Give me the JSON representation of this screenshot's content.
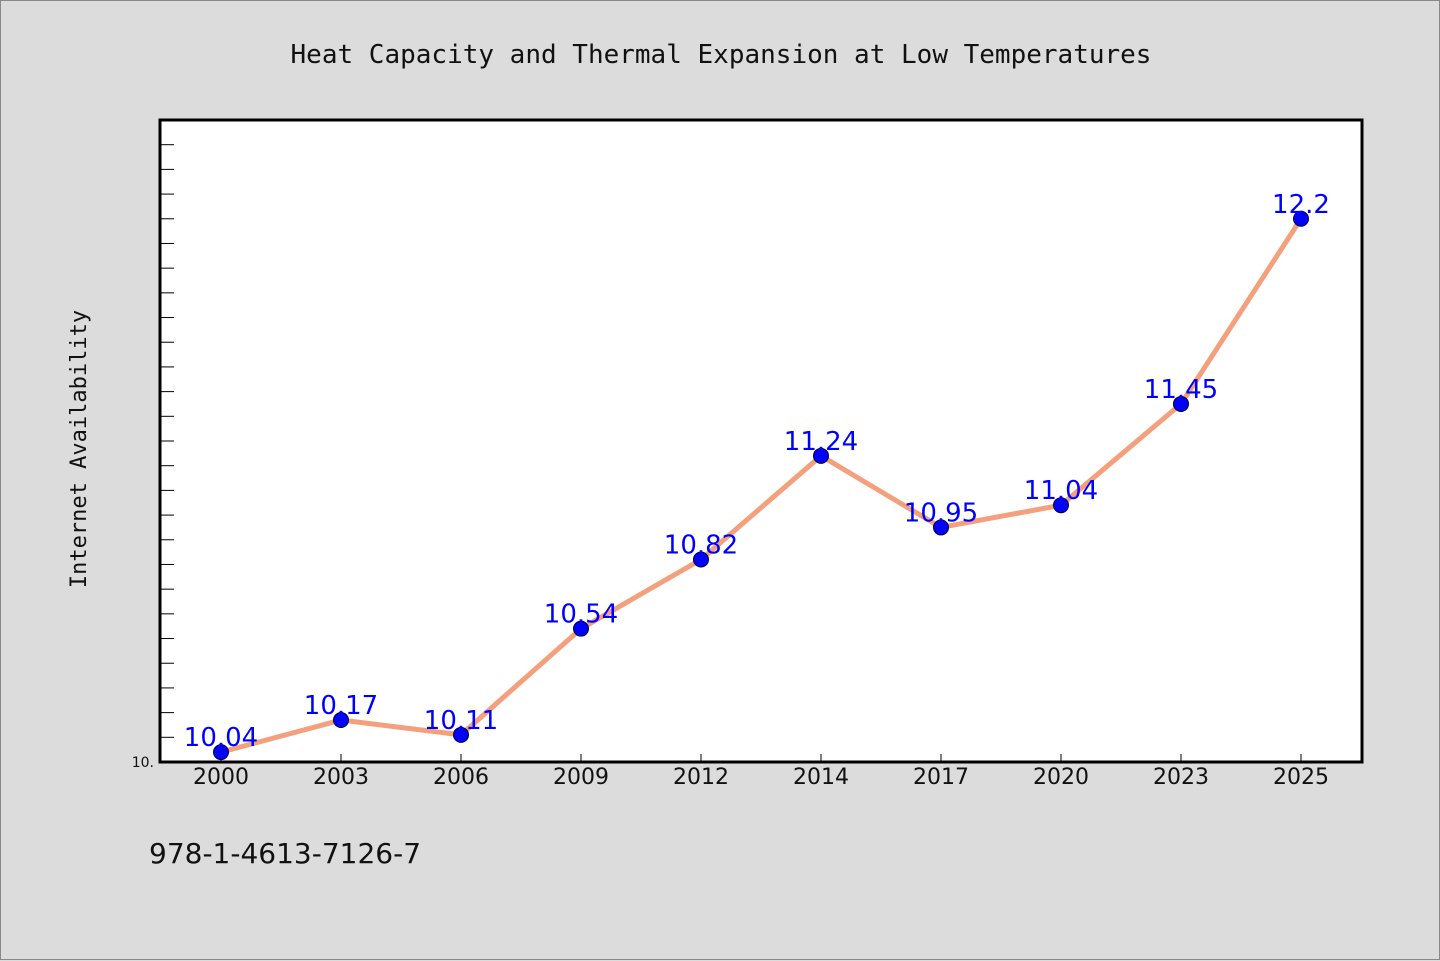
{
  "chart_data": {
    "type": "line",
    "title": "Heat Capacity and Thermal Expansion at Low Temperatures",
    "xlabel": "",
    "ylabel": "Internet Availability",
    "categories": [
      "2000",
      "2003",
      "2006",
      "2009",
      "2012",
      "2014",
      "2017",
      "2020",
      "2023",
      "2025"
    ],
    "series": [
      {
        "values": [
          10.04,
          10.17,
          10.11,
          10.54,
          10.82,
          11.24,
          10.95,
          11.04,
          11.45,
          12.2
        ],
        "labels": [
          "10.04",
          "10.17",
          "10.11",
          "10.54",
          "10.82",
          "11.24",
          "10.95",
          "11.04",
          "11.45",
          "12.2"
        ]
      }
    ],
    "ylim": [
      10.0,
      12.6
    ],
    "ytick_label": "10.",
    "grid": false,
    "colors": {
      "line": "#f4a07c",
      "marker": "#0000ff",
      "label": "#0000ff"
    }
  },
  "footer": {
    "isbn": "978-1-4613-7126-7"
  }
}
